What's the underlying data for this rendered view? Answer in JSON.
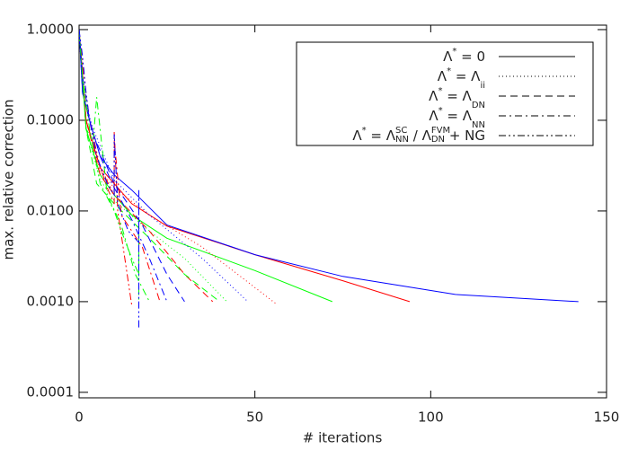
{
  "chart_data": {
    "type": "line",
    "log_y": true,
    "xlabel": "# iterations",
    "ylabel": "max. relative correction",
    "xlim": [
      0,
      150
    ],
    "xticks": [
      0,
      50,
      100,
      150
    ],
    "ylim": [
      8.7e-05,
      1.12
    ],
    "yticks": [
      {
        "value": 0.0001,
        "label": "0.0001"
      },
      {
        "value": 0.001,
        "label": "0.0010"
      },
      {
        "value": 0.01,
        "label": "0.0100"
      },
      {
        "value": 0.1,
        "label": "0.1000"
      },
      {
        "value": 1,
        "label": "1.0000"
      }
    ],
    "legend": "upper right",
    "legend_color": "#000000",
    "series": [
      {
        "label": [
          {
            "text": "Λ"
          },
          {
            "text": "*",
            "pos": "sup"
          },
          {
            "text": " = 0"
          }
        ],
        "dash": "none",
        "curves": [
          {
            "color": "#ff0000",
            "x": [
              0,
              2,
              6,
              10,
              15,
              25,
              50,
              75,
              94
            ],
            "values": [
              1.0,
              0.1,
              0.03,
              0.02,
              0.012,
              0.0068,
              0.0033,
              0.0017,
              0.001
            ]
          },
          {
            "color": "#00ff00",
            "x": [
              0,
              2,
              6,
              10,
              15,
              25,
              50,
              72
            ],
            "values": [
              1.0,
              0.08,
              0.025,
              0.015,
              0.009,
              0.005,
              0.0022,
              0.001
            ]
          },
          {
            "color": "#0000ff",
            "x": [
              0,
              1,
              3,
              6,
              10,
              15,
              25,
              50,
              75,
              107,
              142
            ],
            "values": [
              1.0,
              0.2,
              0.1,
              0.04,
              0.025,
              0.017,
              0.007,
              0.0033,
              0.0019,
              0.0012,
              0.001
            ]
          }
        ]
      },
      {
        "label": [
          {
            "text": "Λ"
          },
          {
            "text": "*",
            "pos": "sup"
          },
          {
            "text": " = Λ"
          },
          {
            "text": "ii",
            "pos": "sub"
          }
        ],
        "dash": "1,3",
        "curves": [
          {
            "color": "#ff0000",
            "x": [
              0,
              2,
              6,
              10,
              20,
              35,
              56
            ],
            "values": [
              1.0,
              0.1,
              0.028,
              0.018,
              0.009,
              0.004,
              0.00095
            ]
          },
          {
            "color": "#00ff00",
            "x": [
              0,
              2,
              6,
              10,
              20,
              30,
              42
            ],
            "values": [
              1.0,
              0.08,
              0.022,
              0.013,
              0.006,
              0.003,
              0.001
            ]
          },
          {
            "color": "#0000ff",
            "x": [
              0,
              1,
              4,
              10,
              20,
              35,
              48
            ],
            "values": [
              1.0,
              0.2,
              0.08,
              0.022,
              0.009,
              0.003,
              0.001
            ]
          }
        ]
      },
      {
        "label": [
          {
            "text": "Λ"
          },
          {
            "text": "*",
            "pos": "sup"
          },
          {
            "text": " = Λ"
          },
          {
            "text": "DN",
            "pos": "sub"
          }
        ],
        "dash": "8,5",
        "curves": [
          {
            "color": "#ff0000",
            "x": [
              0,
              2,
              6,
              10,
              20,
              30,
              38
            ],
            "values": [
              1.0,
              0.1,
              0.025,
              0.015,
              0.006,
              0.002,
              0.001
            ]
          },
          {
            "color": "#00ff00",
            "x": [
              0,
              2,
              5,
              10,
              20,
              30,
              40
            ],
            "values": [
              1.0,
              0.08,
              0.02,
              0.012,
              0.005,
              0.002,
              0.001
            ]
          },
          {
            "color": "#0000ff",
            "x": [
              0,
              1,
              4,
              10,
              18,
              25,
              30
            ],
            "values": [
              1.0,
              0.2,
              0.07,
              0.02,
              0.007,
              0.002,
              0.001
            ]
          }
        ]
      },
      {
        "label": [
          {
            "text": "Λ"
          },
          {
            "text": "*",
            "pos": "sup"
          },
          {
            "text": " = Λ"
          },
          {
            "text": "NN",
            "pos": "sub"
          }
        ],
        "dash": "8,4,2,4",
        "curves": [
          {
            "color": "#ff0000",
            "x": [
              0,
              2,
              5,
              8,
              10,
              10,
              12,
              18,
              23
            ],
            "values": [
              1.0,
              0.1,
              0.04,
              0.018,
              0.012,
              0.06,
              0.009,
              0.004,
              0.001
            ]
          },
          {
            "color": "#00ff00",
            "x": [
              0,
              2,
              4,
              5,
              8,
              12,
              16,
              20
            ],
            "values": [
              1.0,
              0.08,
              0.06,
              0.18,
              0.015,
              0.007,
              0.002,
              0.001
            ]
          },
          {
            "color": "#0000ff",
            "x": [
              0,
              1,
              3,
              6,
              10,
              15,
              20,
              25
            ],
            "values": [
              1.0,
              0.3,
              0.1,
              0.04,
              0.018,
              0.008,
              0.003,
              0.001
            ]
          }
        ]
      },
      {
        "label": [
          {
            "text": "Λ"
          },
          {
            "text": "*",
            "pos": "sup"
          },
          {
            "text": " = Λ"
          },
          {
            "text": "SC",
            "pos": "sup"
          },
          {
            "text": "NN",
            "pos": "sub"
          },
          {
            "text": " / Λ"
          },
          {
            "text": "FVM",
            "pos": "sup"
          },
          {
            "text": "DN",
            "pos": "sub"
          },
          {
            "text": " + NG"
          }
        ],
        "dash": "8,3,2,3,2,3",
        "curves": [
          {
            "color": "#ff0000",
            "x": [
              0,
              1,
              3,
              6,
              10,
              10,
              11,
              13,
              15
            ],
            "values": [
              1.0,
              0.4,
              0.1,
              0.03,
              0.015,
              0.075,
              0.01,
              0.003,
              0.0009
            ]
          },
          {
            "color": "#00ff00",
            "x": [
              0,
              1,
              3,
              6,
              10,
              12,
              15,
              17,
              17,
              17
            ],
            "values": [
              1.0,
              0.3,
              0.08,
              0.02,
              0.01,
              0.006,
              0.003,
              0.002,
              0.008,
              0.001
            ]
          },
          {
            "color": "#0000ff",
            "x": [
              0,
              1,
              2,
              3,
              5,
              8,
              10,
              10,
              11,
              14,
              17,
              17,
              17
            ],
            "values": [
              1.0,
              0.5,
              0.2,
              0.1,
              0.04,
              0.02,
              0.015,
              0.07,
              0.012,
              0.006,
              0.0045,
              0.017,
              0.0005
            ]
          }
        ]
      }
    ]
  }
}
